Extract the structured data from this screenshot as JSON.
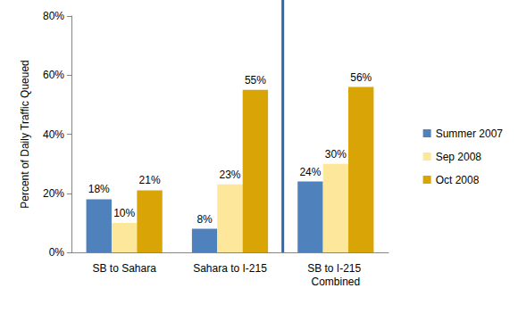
{
  "chart_data": {
    "type": "bar",
    "y_label": "Percent of Daily Traffic Queued",
    "categories": [
      "SB to Sahara",
      "Sahara to I-215",
      "SB to I-215 Combined"
    ],
    "series": [
      {
        "name": "Summer 2007",
        "color": "#4f81bd",
        "values": [
          18,
          8,
          24
        ],
        "value_labels": [
          "18%",
          "8%",
          "24%"
        ]
      },
      {
        "name": "Sep 2008",
        "color": "#fde79b",
        "values": [
          10,
          23,
          30
        ],
        "value_labels": [
          "10%",
          "23%",
          "30%"
        ]
      },
      {
        "name": "Oct 2008",
        "color": "#d9a406",
        "values": [
          21,
          55,
          56
        ],
        "value_labels": [
          "21%",
          "55%",
          "56%"
        ]
      }
    ],
    "ylim": [
      0,
      80
    ],
    "yticks": [
      {
        "value": 0,
        "label": "0%"
      },
      {
        "value": 20,
        "label": "20%"
      },
      {
        "value": 40,
        "label": "40%"
      },
      {
        "value": 60,
        "label": "60%"
      },
      {
        "value": 80,
        "label": "80%"
      }
    ],
    "grid": false,
    "legend": "right",
    "data_labels": true
  }
}
